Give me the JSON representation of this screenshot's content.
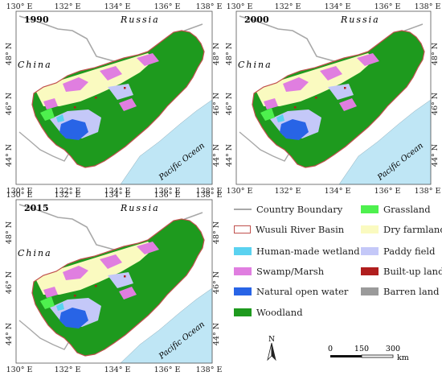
{
  "maps": [
    {
      "year": "1990",
      "country_top": "Russia",
      "country_left": "China",
      "ocean": "Pacific Ocean"
    },
    {
      "year": "2000",
      "country_top": "Russia",
      "country_left": "China",
      "ocean": "Pacific Ocean"
    },
    {
      "year": "2015",
      "country_top": "Russia",
      "country_left": "China",
      "ocean": "Pacific Ocean"
    }
  ],
  "axes": {
    "lon_ticks": [
      "130° E",
      "132° E",
      "134° E",
      "136° E",
      "138° E"
    ],
    "lat_ticks": [
      "44° N",
      "46° N",
      "48° N"
    ]
  },
  "legend": {
    "items": [
      {
        "label": "Country Boundary",
        "color": "#a8a8a8",
        "kind": "line"
      },
      {
        "label": "Wusuli River Basin",
        "color": "#c0504d",
        "kind": "outline"
      },
      {
        "label": "Human-made wetland",
        "color": "#5ad2f0",
        "kind": "fill"
      },
      {
        "label": "Swamp/Marsh",
        "color": "#e07ee0",
        "kind": "fill"
      },
      {
        "label": "Natural open water",
        "color": "#2864e6",
        "kind": "fill"
      },
      {
        "label": "Woodland",
        "color": "#1e9a1e",
        "kind": "fill"
      },
      {
        "label": "Grassland",
        "color": "#4ef04e",
        "kind": "fill"
      },
      {
        "label": "Dry farmland",
        "color": "#fafac0",
        "kind": "fill"
      },
      {
        "label": "Paddy field",
        "color": "#c4c8f8",
        "kind": "fill"
      },
      {
        "label": "Built-up land",
        "color": "#b01e1e",
        "kind": "fill"
      },
      {
        "label": "Barren land",
        "color": "#9a9a9a",
        "kind": "fill"
      }
    ]
  },
  "north_arrow": {
    "label": "N"
  },
  "scale_bar": {
    "ticks": [
      "0",
      "150",
      "300"
    ],
    "unit": "km"
  },
  "colors": {
    "ocean": "#bfe6f5",
    "land_outside": "#ffffff",
    "frame": "#555555"
  }
}
